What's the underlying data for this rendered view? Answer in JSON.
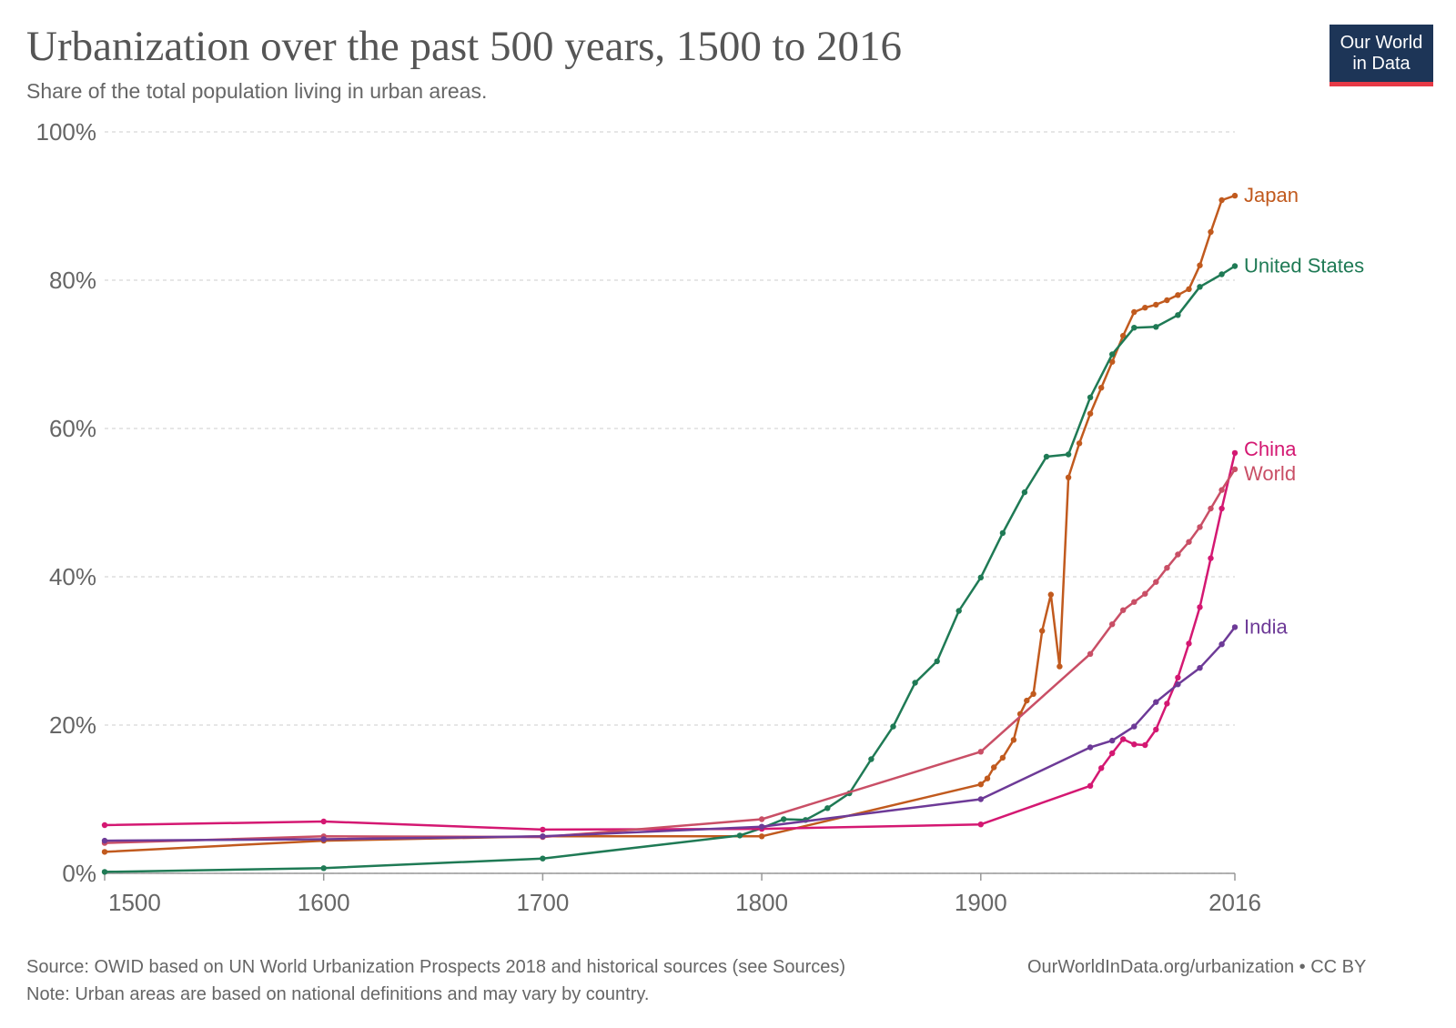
{
  "header": {
    "title": "Urbanization over the past 500 years, 1500 to 2016",
    "subtitle": "Share of the total population living in urban areas.",
    "logo_line1": "Our World",
    "logo_line2": "in Data"
  },
  "footer": {
    "source": "Source: OWID based on UN World Urbanization Prospects 2018 and historical sources (see Sources)",
    "url": "OurWorldInData.org/urbanization • CC BY",
    "note": "Note: Urban areas are based on national definitions and may vary by country."
  },
  "chart_data": {
    "type": "line",
    "title": "Urbanization over the past 500 years, 1500 to 2016",
    "subtitle": "Share of the total population living in urban areas.",
    "xlim": [
      1500,
      2016
    ],
    "ylim": [
      0,
      100
    ],
    "x_ticks": [
      1500,
      1600,
      1700,
      1800,
      1900,
      2016
    ],
    "x_tick_labels": [
      "1500",
      "1600",
      "1700",
      "1800",
      "1900",
      "2016"
    ],
    "y_ticks": [
      0,
      20,
      40,
      60,
      80,
      100
    ],
    "y_tick_labels": [
      "0%",
      "20%",
      "40%",
      "60%",
      "80%",
      "100%"
    ],
    "grid": "horizontal dashed",
    "legend": "end-of-line labels on right",
    "series": [
      {
        "name": "Japan",
        "color": "#c15a1e",
        "points": [
          [
            1500,
            2.9
          ],
          [
            1600,
            4.4
          ],
          [
            1700,
            5.0
          ],
          [
            1800,
            5.0
          ],
          [
            1900,
            12.0
          ],
          [
            1903,
            12.8
          ],
          [
            1906,
            14.3
          ],
          [
            1910,
            15.6
          ],
          [
            1915,
            18.0
          ],
          [
            1918,
            21.5
          ],
          [
            1921,
            23.3
          ],
          [
            1924,
            24.2
          ],
          [
            1928,
            32.7
          ],
          [
            1932,
            37.6
          ],
          [
            1936,
            27.9
          ],
          [
            1940,
            53.4
          ],
          [
            1945,
            58.0
          ],
          [
            1950,
            62.0
          ],
          [
            1955,
            65.5
          ],
          [
            1960,
            69.0
          ],
          [
            1965,
            72.5
          ],
          [
            1970,
            75.7
          ],
          [
            1975,
            76.3
          ],
          [
            1980,
            76.7
          ],
          [
            1985,
            77.3
          ],
          [
            1990,
            78.0
          ],
          [
            1995,
            78.8
          ],
          [
            2000,
            82.0
          ],
          [
            2005,
            86.5
          ],
          [
            2010,
            90.8
          ],
          [
            2016,
            91.4
          ]
        ]
      },
      {
        "name": "United States",
        "color": "#1f7a55",
        "points": [
          [
            1500,
            0.2
          ],
          [
            1600,
            0.7
          ],
          [
            1700,
            2.0
          ],
          [
            1790,
            5.1
          ],
          [
            1800,
            6.1
          ],
          [
            1810,
            7.3
          ],
          [
            1820,
            7.2
          ],
          [
            1830,
            8.8
          ],
          [
            1840,
            10.8
          ],
          [
            1850,
            15.4
          ],
          [
            1860,
            19.8
          ],
          [
            1870,
            25.7
          ],
          [
            1880,
            28.6
          ],
          [
            1890,
            35.4
          ],
          [
            1900,
            39.9
          ],
          [
            1910,
            45.9
          ],
          [
            1920,
            51.4
          ],
          [
            1930,
            56.2
          ],
          [
            1940,
            56.5
          ],
          [
            1950,
            64.2
          ],
          [
            1960,
            70.0
          ],
          [
            1970,
            73.6
          ],
          [
            1980,
            73.7
          ],
          [
            1990,
            75.3
          ],
          [
            2000,
            79.1
          ],
          [
            2010,
            80.8
          ],
          [
            2016,
            81.9
          ]
        ]
      },
      {
        "name": "China",
        "color": "#d41872",
        "points": [
          [
            1500,
            6.5
          ],
          [
            1600,
            7.0
          ],
          [
            1700,
            5.9
          ],
          [
            1800,
            6.0
          ],
          [
            1900,
            6.6
          ],
          [
            1950,
            11.8
          ],
          [
            1955,
            14.2
          ],
          [
            1960,
            16.2
          ],
          [
            1965,
            18.1
          ],
          [
            1970,
            17.4
          ],
          [
            1975,
            17.3
          ],
          [
            1980,
            19.4
          ],
          [
            1985,
            22.9
          ],
          [
            1990,
            26.4
          ],
          [
            1995,
            31.0
          ],
          [
            2000,
            35.9
          ],
          [
            2005,
            42.5
          ],
          [
            2010,
            49.2
          ],
          [
            2016,
            56.7
          ]
        ]
      },
      {
        "name": "World",
        "color": "#c94f66",
        "points": [
          [
            1500,
            4.1
          ],
          [
            1600,
            5.0
          ],
          [
            1700,
            4.9
          ],
          [
            1800,
            7.3
          ],
          [
            1900,
            16.4
          ],
          [
            1950,
            29.6
          ],
          [
            1960,
            33.6
          ],
          [
            1965,
            35.5
          ],
          [
            1970,
            36.6
          ],
          [
            1975,
            37.7
          ],
          [
            1980,
            39.3
          ],
          [
            1985,
            41.2
          ],
          [
            1990,
            43.0
          ],
          [
            1995,
            44.7
          ],
          [
            2000,
            46.7
          ],
          [
            2005,
            49.2
          ],
          [
            2010,
            51.7
          ],
          [
            2016,
            54.5
          ]
        ]
      },
      {
        "name": "India",
        "color": "#6d3a97",
        "points": [
          [
            1500,
            4.4
          ],
          [
            1600,
            4.6
          ],
          [
            1700,
            5.0
          ],
          [
            1800,
            6.3
          ],
          [
            1900,
            10.0
          ],
          [
            1950,
            17.0
          ],
          [
            1960,
            17.9
          ],
          [
            1970,
            19.8
          ],
          [
            1980,
            23.1
          ],
          [
            1990,
            25.5
          ],
          [
            2000,
            27.7
          ],
          [
            2010,
            30.9
          ],
          [
            2016,
            33.2
          ]
        ]
      }
    ]
  }
}
